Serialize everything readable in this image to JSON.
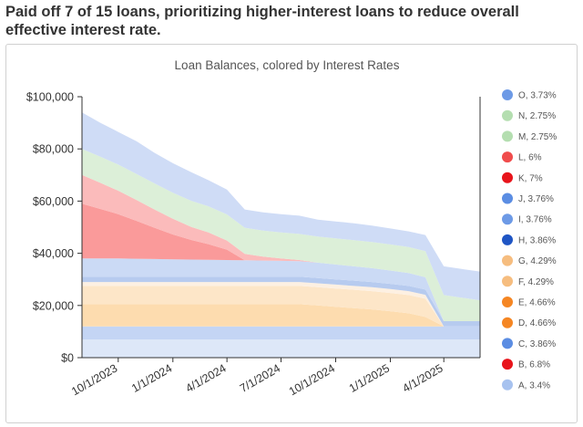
{
  "headline": "Paid off 7 of 15 loans, prioritizing higher-interest loans to reduce overall effective interest rate.",
  "chart_data": {
    "type": "area",
    "stacked": true,
    "title": "Loan Balances, colored by Interest Rates",
    "xlabel": "",
    "ylabel": "",
    "ylim": [
      0,
      100000
    ],
    "yticks": [
      "$0",
      "$20,000",
      "$40,000",
      "$60,000",
      "$80,000",
      "$100,000"
    ],
    "ytick_values": [
      0,
      20000,
      40000,
      60000,
      80000,
      100000
    ],
    "xticks": [
      "10/1/2023",
      "1/1/2024",
      "4/1/2024",
      "7/1/2024",
      "10/1/2024",
      "1/1/2025",
      "4/1/2025"
    ],
    "xtick_values": [
      "2023-10-01",
      "2024-01-01",
      "2024-04-01",
      "2024-07-01",
      "2024-10-01",
      "2025-01-01",
      "2025-04-01"
    ],
    "x": [
      "2023-08-01",
      "2023-09-01",
      "2023-10-01",
      "2023-11-01",
      "2023-12-01",
      "2024-01-01",
      "2024-02-01",
      "2024-03-01",
      "2024-04-01",
      "2024-05-01",
      "2024-06-01",
      "2024-07-01",
      "2024-08-01",
      "2024-09-01",
      "2024-10-01",
      "2024-11-01",
      "2024-12-01",
      "2025-01-01",
      "2025-02-01",
      "2025-03-01",
      "2025-04-01",
      "2025-05-01",
      "2025-06-01"
    ],
    "grid": false,
    "legend_position": "right",
    "series": [
      {
        "name": "A, 3.4%",
        "color": "#dde7f8",
        "values": [
          7000,
          7000,
          7000,
          7000,
          7000,
          7000,
          7000,
          7000,
          7000,
          7000,
          7000,
          7000,
          7000,
          7000,
          7000,
          7000,
          7000,
          7000,
          7000,
          7000,
          7000,
          7000,
          7000
        ]
      },
      {
        "name": "B, 6.8%",
        "color": "#fcc3c3",
        "values": [
          0,
          0,
          0,
          0,
          0,
          0,
          0,
          0,
          0,
          0,
          0,
          0,
          0,
          0,
          0,
          0,
          0,
          0,
          0,
          0,
          0,
          0,
          0
        ]
      },
      {
        "name": "C, 3.86%",
        "color": "#c4d5f4",
        "values": [
          5000,
          5000,
          5000,
          5000,
          5000,
          5000,
          5000,
          5000,
          5000,
          5000,
          5000,
          5000,
          5000,
          5000,
          5000,
          5000,
          5000,
          5000,
          5000,
          5000,
          5000,
          5000,
          5000
        ]
      },
      {
        "name": "D, 4.66%",
        "color": "#fddcaf",
        "values": [
          8500,
          8500,
          8500,
          8500,
          8500,
          8500,
          8500,
          8500,
          8500,
          8500,
          8500,
          8500,
          8500,
          8000,
          7500,
          7000,
          6500,
          5800,
          5000,
          3600,
          0,
          0,
          0
        ]
      },
      {
        "name": "E, 4.66%",
        "color": "#fde6c8",
        "values": [
          7000,
          7000,
          7000,
          7000,
          7000,
          7000,
          7000,
          7000,
          7000,
          7000,
          7000,
          7000,
          7000,
          7000,
          7000,
          7000,
          7000,
          7000,
          7000,
          7000,
          0,
          0,
          0
        ]
      },
      {
        "name": "F, 4.29%",
        "color": "#fdf0e2",
        "values": [
          1500,
          1500,
          1500,
          1500,
          1500,
          1500,
          1500,
          1500,
          1500,
          1500,
          1500,
          1500,
          1500,
          1500,
          1500,
          1500,
          1500,
          1500,
          1500,
          1500,
          0,
          0,
          0
        ]
      },
      {
        "name": "G, 4.29%",
        "color": "#fce8d0",
        "values": [
          0,
          0,
          0,
          0,
          0,
          0,
          0,
          0,
          0,
          0,
          0,
          0,
          0,
          0,
          0,
          0,
          0,
          0,
          0,
          0,
          0,
          0,
          0
        ]
      },
      {
        "name": "H, 3.86%",
        "color": "#b7cbef",
        "values": [
          2000,
          2000,
          2000,
          2000,
          2000,
          2000,
          2000,
          2000,
          2000,
          2000,
          2000,
          2000,
          2000,
          2000,
          2000,
          2000,
          2000,
          2000,
          2000,
          2000,
          2000,
          2000,
          2000
        ]
      },
      {
        "name": "I, 3.76%",
        "color": "#cbdaf5",
        "values": [
          7000,
          7000,
          7000,
          6900,
          6800,
          6700,
          6600,
          6500,
          6400,
          6300,
          6200,
          6100,
          6000,
          5900,
          5700,
          5500,
          5300,
          5100,
          4900,
          4700,
          0,
          0,
          0
        ]
      },
      {
        "name": "J, 3.76%",
        "color": "#d6e1f7",
        "values": [
          0,
          0,
          0,
          0,
          0,
          0,
          0,
          0,
          0,
          0,
          0,
          0,
          0,
          0,
          0,
          0,
          0,
          0,
          0,
          0,
          0,
          0,
          0
        ]
      },
      {
        "name": "K, 7%",
        "color": "#fa9a9a",
        "values": [
          21000,
          19000,
          17000,
          14500,
          12000,
          9500,
          7500,
          6000,
          4000,
          0,
          0,
          0,
          0,
          0,
          0,
          0,
          0,
          0,
          0,
          0,
          0,
          0,
          0
        ]
      },
      {
        "name": "L, 6%",
        "color": "#fbbbbb",
        "values": [
          11000,
          10000,
          9000,
          8000,
          7000,
          6000,
          5000,
          4500,
          3500,
          2500,
          1500,
          900,
          400,
          0,
          0,
          0,
          0,
          0,
          0,
          0,
          0,
          0,
          0
        ]
      },
      {
        "name": "M, 2.75%",
        "color": "#dcefd8",
        "values": [
          10000,
          10000,
          10000,
          10000,
          10000,
          10000,
          10000,
          10000,
          10000,
          10000,
          10000,
          10000,
          10000,
          10000,
          10000,
          10000,
          10000,
          10000,
          10000,
          10000,
          10000,
          9000,
          8000
        ]
      },
      {
        "name": "N, 2.75%",
        "color": "#e4f1de",
        "values": [
          0,
          0,
          0,
          0,
          0,
          0,
          0,
          0,
          0,
          0,
          0,
          0,
          0,
          0,
          0,
          0,
          0,
          0,
          0,
          0,
          0,
          0,
          0
        ]
      },
      {
        "name": "O, 3.73%",
        "color": "#cfdcf6",
        "values": [
          14000,
          13000,
          12500,
          12500,
          11700,
          11300,
          11000,
          10000,
          9500,
          7000,
          7000,
          7000,
          7000,
          6500,
          6500,
          6500,
          6300,
          6100,
          6000,
          6200,
          11000,
          11000,
          11000
        ]
      }
    ],
    "legend_order": [
      "O, 3.73%",
      "N, 2.75%",
      "M, 2.75%",
      "L, 6%",
      "K, 7%",
      "J, 3.76%",
      "I, 3.76%",
      "H, 3.86%",
      "G, 4.29%",
      "F, 4.29%",
      "E, 4.66%",
      "D, 4.66%",
      "C, 3.86%",
      "B, 6.8%",
      "A, 3.4%"
    ],
    "legend_marker_colors": {
      "O, 3.73%": "#6d9ae6",
      "N, 2.75%": "#b4deb0",
      "M, 2.75%": "#b4deb0",
      "L, 6%": "#f04c4c",
      "K, 7%": "#e8141b",
      "J, 3.76%": "#5b8de3",
      "I, 3.76%": "#6d9ae6",
      "H, 3.86%": "#1f55c4",
      "G, 4.29%": "#f6bd7f",
      "F, 4.29%": "#f6bd7f",
      "E, 4.66%": "#f58623",
      "D, 4.66%": "#f58623",
      "C, 3.86%": "#5b8de3",
      "B, 6.8%": "#e8141b",
      "A, 3.4%": "#a7c2ef"
    }
  }
}
